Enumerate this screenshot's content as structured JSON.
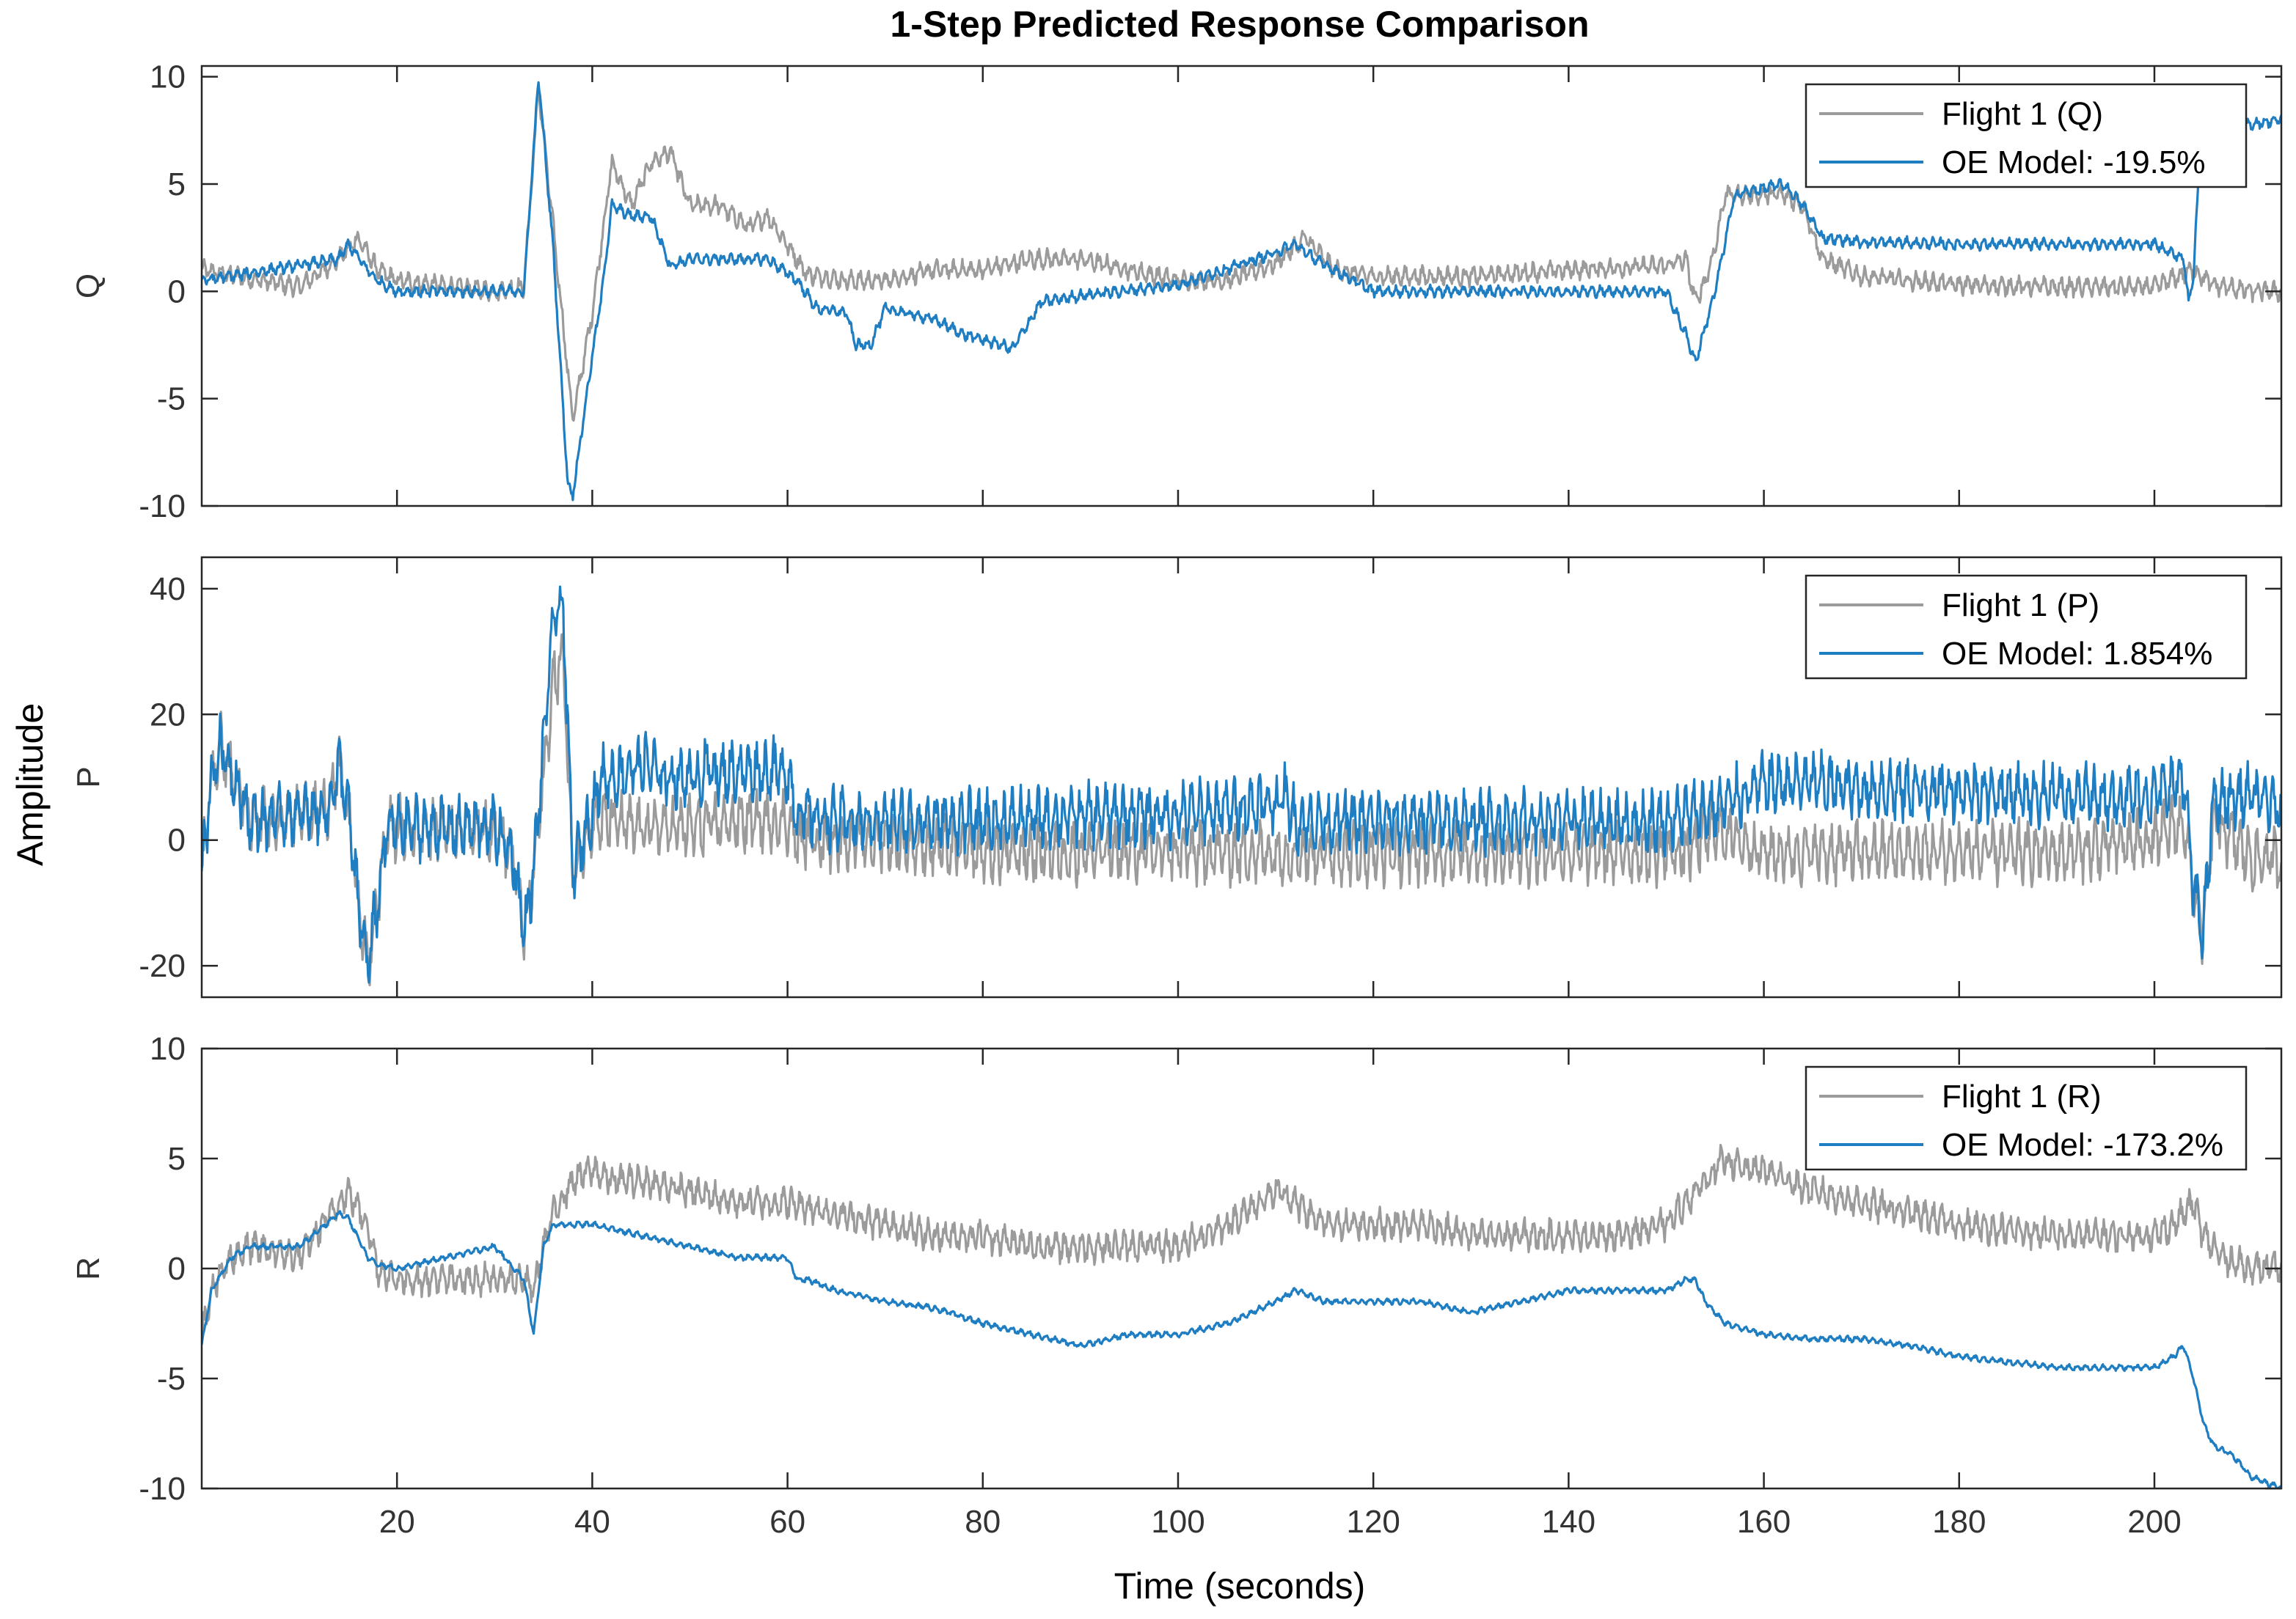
{
  "chart_data": {
    "type": "line",
    "title": "1-Step Predicted Response Comparison",
    "xlabel": "Time (seconds)",
    "ylabel": "Amplitude",
    "xlim": [
      0,
      213
    ],
    "xticks": [
      20,
      40,
      60,
      80,
      100,
      120,
      140,
      160,
      180,
      200
    ],
    "colors": {
      "measured": "#9b9b9b",
      "model": "#1f7ec2",
      "axes": "#262626"
    },
    "panels": [
      {
        "name": "Q",
        "ylabel": "Q",
        "ylim": [
          -10,
          10.5
        ],
        "yticks": [
          -10,
          -5,
          0,
          5,
          10
        ],
        "legend": "top-right",
        "noise": {
          "measured": 0.5,
          "model": 0.3
        },
        "series": [
          {
            "name": "Flight 1 (Q)",
            "role": "measured",
            "x": [
              0,
              10,
              14,
              16,
              18,
              20,
              30,
              33,
              34.5,
              36,
              38,
              40,
              42,
              44,
              46,
              48,
              50,
              53,
              56,
              58,
              62,
              66,
              70,
              75,
              80,
              85,
              90,
              95,
              100,
              105,
              110,
              113,
              116,
              120,
              130,
              140,
              150,
              152,
              153,
              154,
              155,
              156,
              158,
              162,
              164,
              166,
              170,
              175,
              180,
              190,
              200,
              204,
              206,
              210,
              213
            ],
            "y": [
              1,
              0.2,
              1.5,
              2.5,
              1,
              0.5,
              0,
              0.2,
              9.5,
              3,
              -6,
              -1,
              6,
              4,
              6,
              6.5,
              4,
              4,
              3,
              3.5,
              0.8,
              0.5,
              0.5,
              1,
              1,
              1.5,
              1.5,
              1,
              0.5,
              0.5,
              1.3,
              2.5,
              1,
              0.7,
              0.7,
              1,
              1.2,
              1.5,
              -0.5,
              0.5,
              2,
              4.5,
              4.5,
              4.5,
              4,
              1.5,
              0.7,
              0.5,
              0.3,
              0.2,
              0.2,
              1,
              0.3,
              0,
              0
            ]
          },
          {
            "name": "OE Model: -19.5%",
            "role": "model",
            "x": [
              0,
              14,
              15,
              17,
              18,
              20,
              30,
              33,
              34.5,
              36,
              37.5,
              38,
              40,
              41,
              42,
              44,
              46,
              48,
              50,
              54,
              58,
              61,
              63,
              66,
              67,
              68.5,
              70,
              75,
              78,
              82,
              83,
              86,
              90,
              100,
              110,
              112,
              114,
              120,
              130,
              140,
              150,
              152,
              153,
              155,
              157,
              162,
              164,
              166,
              170,
              180,
              190,
              200,
              203,
              203.5,
              204,
              204.5,
              206,
              210,
              213
            ],
            "y": [
              0.5,
              1.5,
              2.2,
              1,
              0.5,
              0,
              0,
              0,
              10,
              2,
              -9,
              -9.5,
              -3,
              0,
              4,
              3.5,
              3.5,
              1.2,
              1.5,
              1.5,
              1.5,
              0.5,
              -0.8,
              -1,
              -2.5,
              -2.5,
              -0.8,
              -1.3,
              -2,
              -2.5,
              -2.7,
              -0.5,
              -0.2,
              0.3,
              1.8,
              2.2,
              1.5,
              0,
              0,
              0,
              0,
              -2,
              -3.3,
              0,
              4.5,
              5,
              4,
              2.5,
              2.3,
              2.2,
              2.2,
              2.2,
              1.5,
              -0.5,
              0.8,
              5,
              7.5,
              7.8,
              8
            ]
          }
        ]
      },
      {
        "name": "P",
        "ylabel": "P",
        "ylim": [
          -25,
          45
        ],
        "yticks": [
          -20,
          0,
          20,
          40
        ],
        "legend": "top-right",
        "noise": {
          "measured": 5.5,
          "model": 5.5
        },
        "series": [
          {
            "name": "Flight 1 (P)",
            "role": "measured",
            "x": [
              0,
              1,
              2,
              5,
              13,
              14,
              15,
              16,
              17,
              18,
              19,
              20,
              25,
              30,
              32,
              33,
              34,
              35,
              36,
              37,
              38,
              40,
              42,
              44,
              50,
              55,
              60,
              61,
              62,
              66,
              70,
              80,
              90,
              100,
              110,
              111,
              112,
              120,
              130,
              140,
              150,
              152,
              155,
              160,
              165,
              170,
              180,
              190,
              200,
              203,
              204,
              205,
              206,
              210,
              213
            ],
            "y": [
              -5,
              10,
              15,
              3,
              5,
              12,
              5,
              -10,
              -20,
              -10,
              2,
              2,
              2,
              2,
              -3,
              -15,
              -5,
              10,
              25,
              30,
              -5,
              3,
              3,
              2,
              2,
              3,
              3,
              0,
              0,
              0,
              0,
              -2,
              -2,
              -2,
              -2,
              -2,
              -2,
              -2,
              -2,
              -2,
              -2,
              -2,
              2,
              -2,
              -2,
              -2,
              -2,
              -2,
              0,
              3,
              -8,
              -15,
              3,
              -3,
              -3
            ]
          },
          {
            "name": "OE Model: 1.854%",
            "role": "model",
            "x": [
              0,
              1,
              2,
              5,
              13,
              14,
              15,
              16,
              17,
              18,
              19,
              20,
              25,
              30,
              32,
              33,
              34,
              35,
              36,
              37,
              38,
              40,
              41,
              42,
              45,
              46,
              47,
              51,
              52,
              53,
              54,
              60,
              61,
              62,
              66,
              70,
              80,
              90,
              100,
              110,
              111,
              112,
              120,
              130,
              140,
              150,
              152,
              155,
              160,
              165,
              170,
              180,
              190,
              200,
              203,
              204,
              205,
              206,
              210,
              213
            ],
            "y": [
              -5,
              10,
              15,
              3,
              5,
              12,
              5,
              -10,
              -20,
              -10,
              2,
              2,
              2,
              2,
              -3,
              -15,
              -5,
              15,
              35,
              38,
              -5,
              5,
              10,
              10,
              12,
              12,
              10,
              10,
              12,
              10,
              11,
              11,
              4,
              4,
              3,
              3,
              3,
              4,
              4,
              6,
              7,
              3,
              3,
              3,
              3,
              3,
              4,
              5,
              9,
              9,
              8,
              8,
              7,
              7,
              10,
              -8,
              -15,
              6,
              7,
              5
            ]
          }
        ]
      },
      {
        "name": "R",
        "ylabel": "R",
        "ylim": [
          -10,
          10
        ],
        "yticks": [
          -10,
          -5,
          0,
          5,
          10
        ],
        "legend": "top-right",
        "noise": {
          "measured": 0.8,
          "model": 0.15
        },
        "series": [
          {
            "name": "Flight 1 (R)",
            "role": "measured",
            "x": [
              0,
              1,
              3,
              5,
              10,
              14,
              15,
              17,
              18,
              20,
              25,
              30,
              33,
              34,
              35,
              36,
              38,
              40,
              42,
              45,
              50,
              55,
              60,
              65,
              70,
              75,
              80,
              85,
              90,
              95,
              100,
              105,
              110,
              112,
              115,
              120,
              125,
              130,
              135,
              140,
              145,
              150,
              152,
              154,
              156,
              158,
              160,
              165,
              170,
              175,
              180,
              190,
              200,
              202,
              203,
              204,
              205,
              207,
              210,
              213
            ],
            "y": [
              -3,
              -1,
              0.5,
              1,
              0.5,
              3,
              3.5,
              2,
              0,
              -0.5,
              -0.5,
              -0.5,
              -0.5,
              -1,
              1,
              2.5,
              4,
              4.5,
              4,
              4,
              3.5,
              3,
              3,
              2.5,
              2,
              1.5,
              1.5,
              1,
              1,
              1,
              1,
              2,
              3.5,
              3,
              2,
              2,
              2,
              1.5,
              1.5,
              1.5,
              1.5,
              2,
              3,
              4,
              5,
              4.5,
              4.5,
              3.5,
              3,
              2.5,
              2,
              1.5,
              1.5,
              2,
              2.5,
              3,
              1.5,
              0.5,
              0,
              0
            ]
          },
          {
            "name": "OE Model: -173.2%",
            "role": "model",
            "x": [
              0,
              1,
              3,
              5,
              10,
              14,
              15,
              17,
              18,
              20,
              25,
              30,
              33,
              34,
              35,
              36,
              40,
              45,
              50,
              55,
              60,
              61,
              62,
              65,
              70,
              75,
              80,
              85,
              90,
              95,
              100,
              105,
              110,
              112,
              115,
              120,
              125,
              130,
              135,
              140,
              145,
              150,
              152,
              153,
              154,
              156,
              160,
              165,
              170,
              175,
              180,
              190,
              200,
              202,
              203,
              204,
              205,
              206,
              208,
              210,
              213
            ],
            "y": [
              -3.5,
              -1,
              0.5,
              1,
              1,
              2.5,
              2.3,
              0.5,
              0.2,
              0,
              0.5,
              1,
              -0.5,
              -3,
              1,
              2,
              2,
              1.5,
              1,
              0.5,
              0.5,
              -0.5,
              -0.5,
              -1,
              -1.5,
              -1.8,
              -2.5,
              -3,
              -3.5,
              -3,
              -3,
              -2.5,
              -1.5,
              -1,
              -1.5,
              -1.5,
              -1.5,
              -2,
              -1.5,
              -1,
              -1,
              -1,
              -0.5,
              -0.5,
              -1.5,
              -2.5,
              -3,
              -3.2,
              -3.2,
              -3.5,
              -4,
              -4.5,
              -4.5,
              -4,
              -3.5,
              -5,
              -7,
              -8,
              -8.5,
              -9.5,
              -10
            ]
          }
        ]
      }
    ]
  }
}
